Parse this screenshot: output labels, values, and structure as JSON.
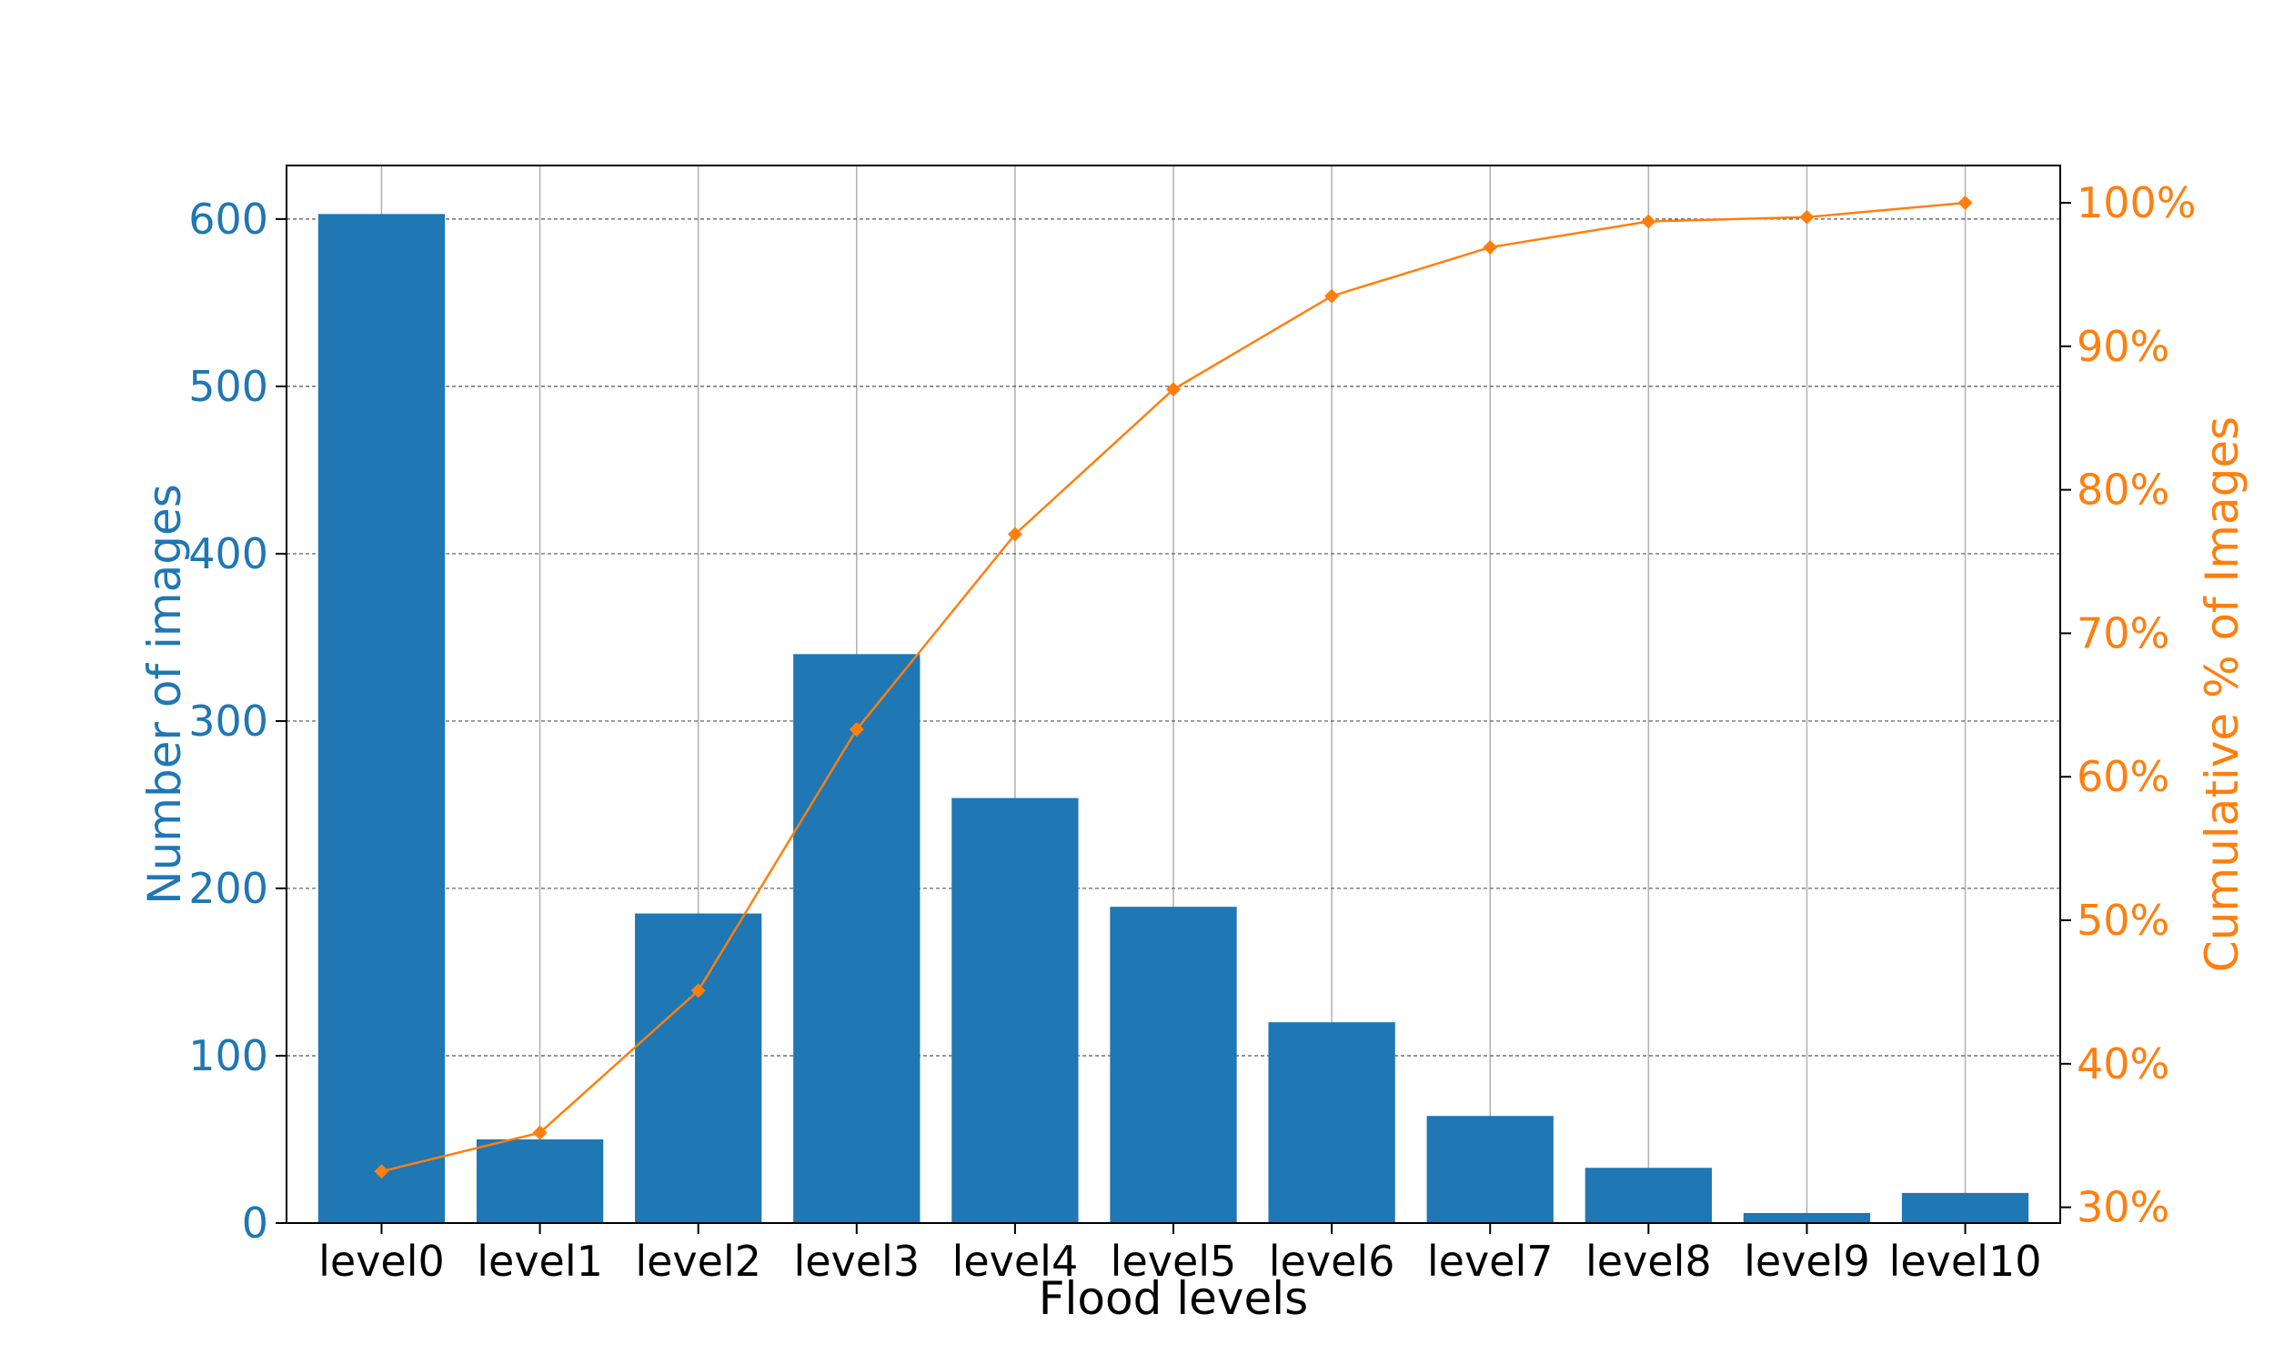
{
  "chart_data": {
    "type": "bar",
    "title": "",
    "xlabel": "Flood levels",
    "ylabel": "Number of images",
    "y2label": "Cumulative % of Images",
    "categories": [
      "level0",
      "level1",
      "level2",
      "level3",
      "level4",
      "level5",
      "level6",
      "level7",
      "level8",
      "level9",
      "level10"
    ],
    "series": [
      {
        "type": "bar",
        "axis": "left",
        "values": [
          603,
          50,
          185,
          340,
          254,
          189,
          120,
          64,
          33,
          6,
          18
        ]
      },
      {
        "type": "line",
        "axis": "right",
        "marker": "diamond",
        "values": [
          32.5,
          35.2,
          45.1,
          63.3,
          76.9,
          87.0,
          93.5,
          96.9,
          98.7,
          99.0,
          100.0
        ]
      }
    ],
    "ylim": [
      0,
      632
    ],
    "y_ticks": [
      0,
      100,
      200,
      300,
      400,
      500,
      600
    ],
    "y2lim": [
      28.9,
      102.6
    ],
    "y2_ticks": [
      30,
      40,
      50,
      60,
      70,
      80,
      90,
      100
    ],
    "y2_tick_suffix": "%",
    "grid": true,
    "colors": {
      "bar": "#1f77b4",
      "line": "#ff7f0e"
    }
  }
}
